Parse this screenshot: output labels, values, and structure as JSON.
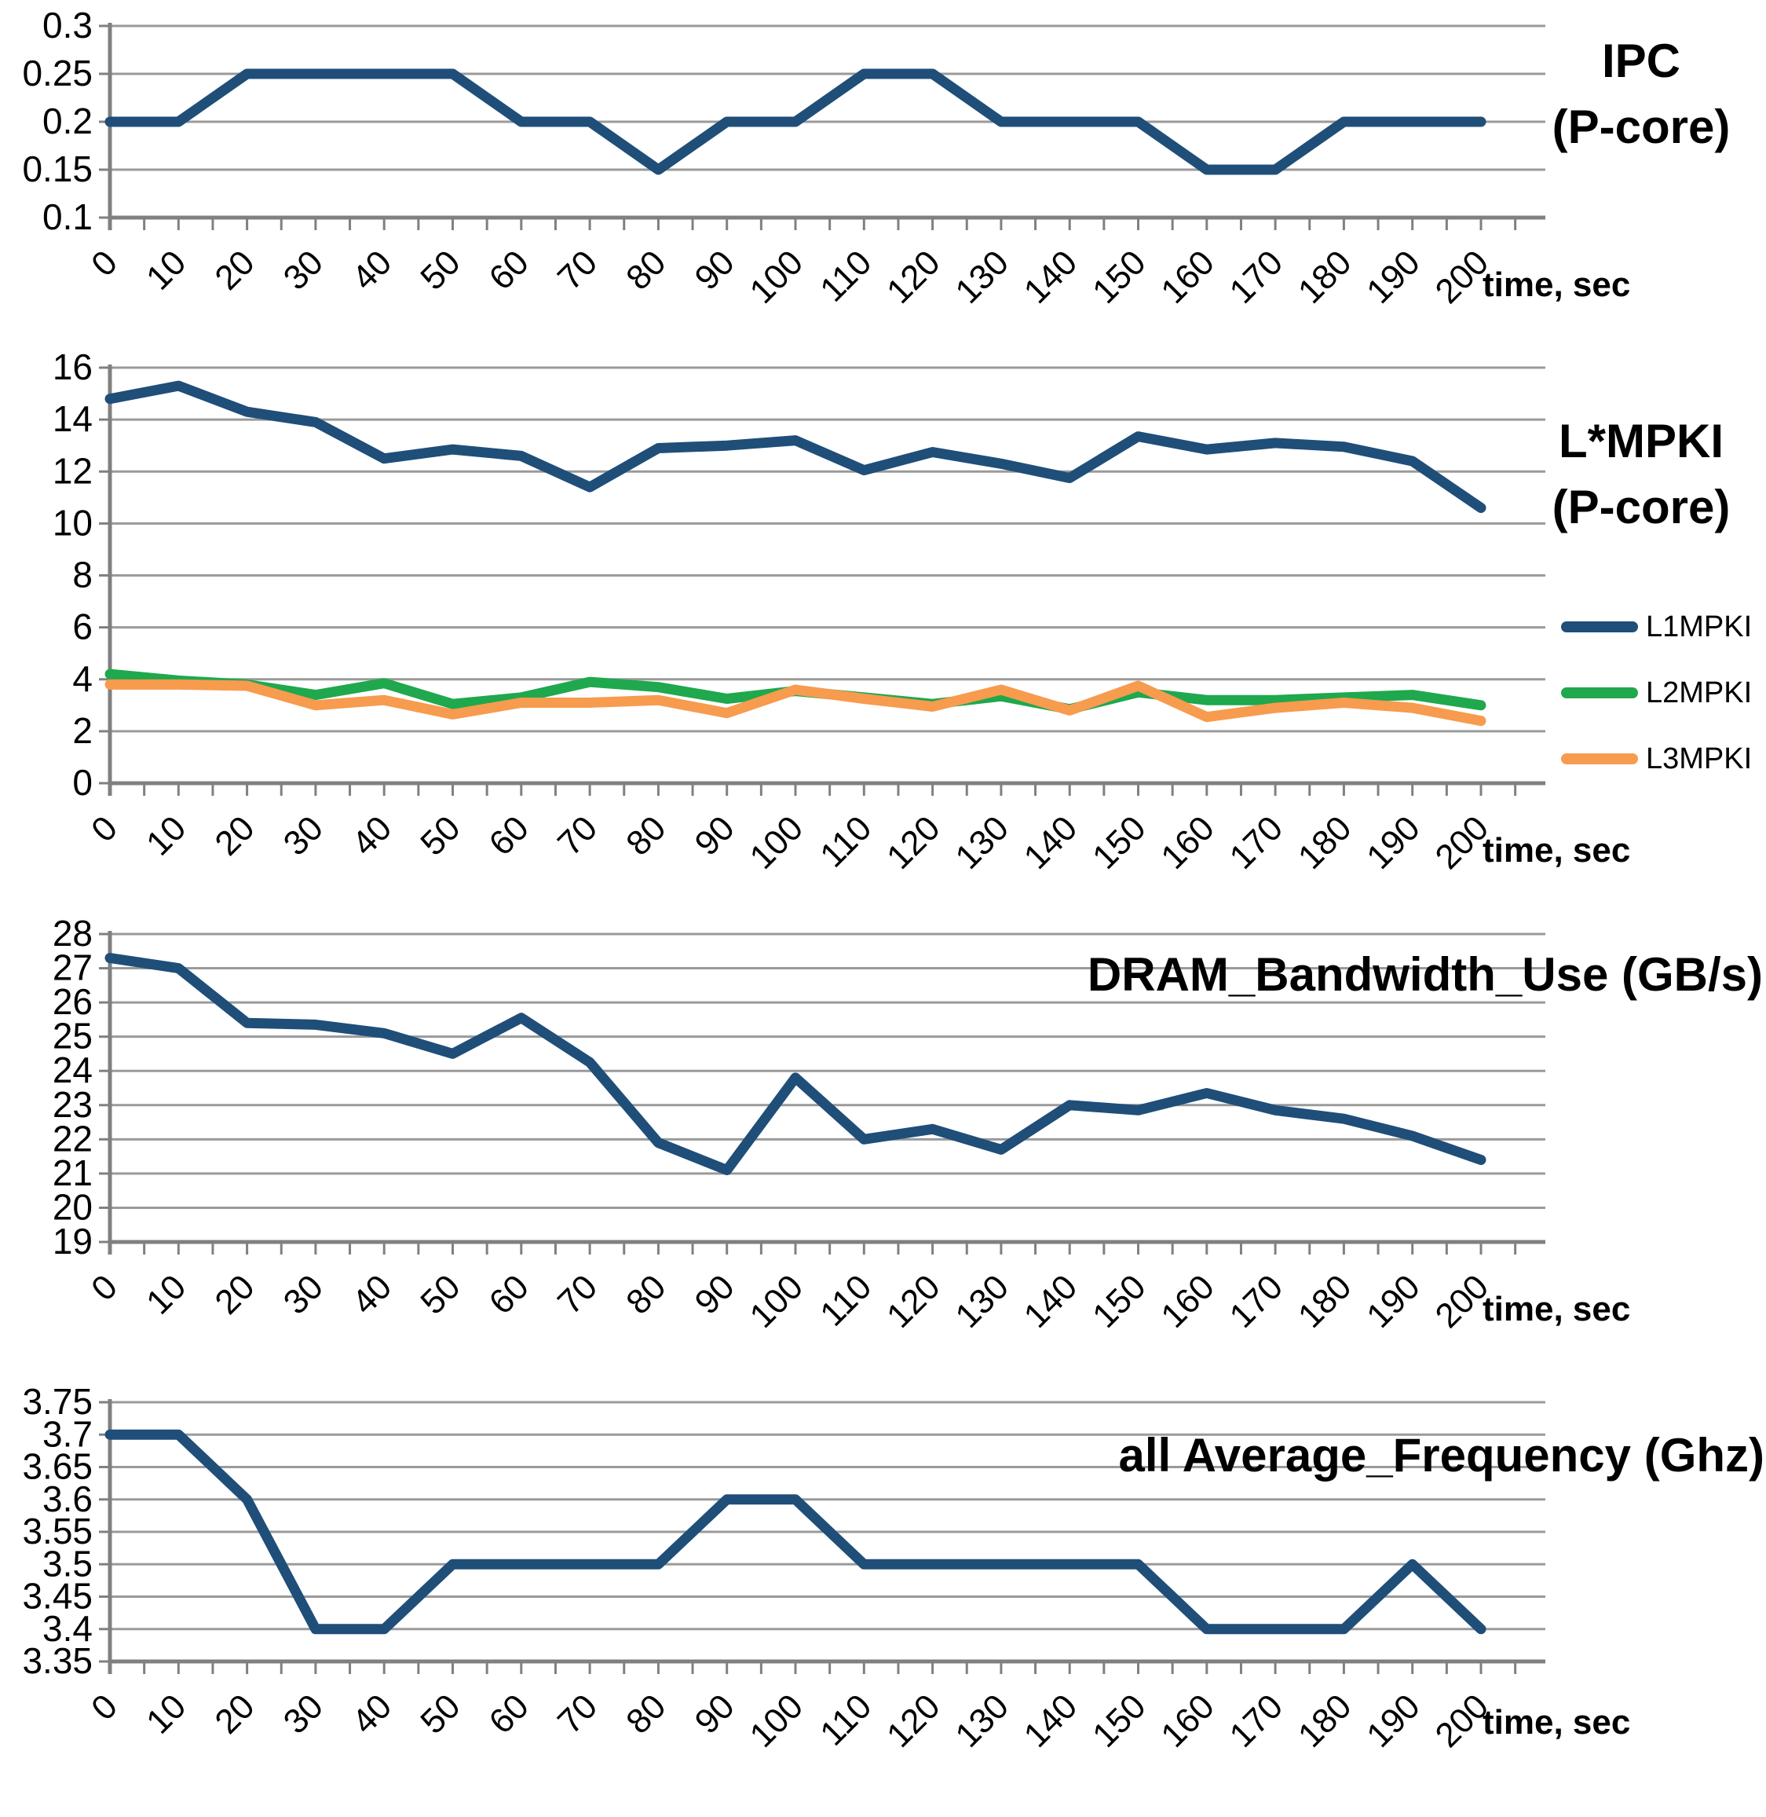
{
  "colors": {
    "series_navy": "#1F4E79",
    "series_green": "#1FA84D",
    "series_orange": "#F79B4E",
    "gridline": "#9A9A9A",
    "axis": "#808080",
    "text": "#000000",
    "background": "#FFFFFF"
  },
  "chart_data": [
    {
      "id": "ipc",
      "type": "line",
      "title_lines": [
        "IPC",
        "(P-core)"
      ],
      "x_label": "time, sec",
      "x": [
        0,
        10,
        20,
        30,
        40,
        50,
        60,
        70,
        80,
        90,
        100,
        110,
        120,
        130,
        140,
        150,
        160,
        170,
        180,
        190,
        200
      ],
      "x_tick_labels": [
        "0",
        "10",
        "20",
        "30",
        "40",
        "50",
        "60",
        "70",
        "80",
        "90",
        "100",
        "110",
        "120",
        "130",
        "140",
        "150",
        "160",
        "170",
        "180",
        "190",
        "200"
      ],
      "y_tick_labels": [
        "0.3",
        "0.25",
        "0.2",
        "0.15",
        "0.1"
      ],
      "ylim": [
        0.1,
        0.3
      ],
      "grid": true,
      "legend_position": "none",
      "series": [
        {
          "name": "IPC",
          "color": "#1F4E79",
          "values": [
            0.2,
            0.2,
            0.25,
            0.25,
            0.25,
            0.25,
            0.2,
            0.2,
            0.15,
            0.2,
            0.2,
            0.25,
            0.25,
            0.2,
            0.2,
            0.2,
            0.15,
            0.15,
            0.2,
            0.2,
            0.2
          ]
        }
      ]
    },
    {
      "id": "mpki",
      "type": "line",
      "title_lines": [
        "L*MPKI",
        "(P-core)"
      ],
      "x_label": "time, sec",
      "x": [
        0,
        10,
        20,
        30,
        40,
        50,
        60,
        70,
        80,
        90,
        100,
        110,
        120,
        130,
        140,
        150,
        160,
        170,
        180,
        190,
        200
      ],
      "x_tick_labels": [
        "0",
        "10",
        "20",
        "30",
        "40",
        "50",
        "60",
        "70",
        "80",
        "90",
        "100",
        "110",
        "120",
        "130",
        "140",
        "150",
        "160",
        "170",
        "180",
        "190",
        "200"
      ],
      "y_tick_labels": [
        "16",
        "14",
        "12",
        "10",
        "8",
        "6",
        "4",
        "2",
        "0"
      ],
      "ylim": [
        0,
        16
      ],
      "grid": true,
      "legend_position": "right",
      "series": [
        {
          "name": "L1MPKI",
          "color": "#1F4E79",
          "values": [
            14.8,
            15.3,
            14.3,
            13.9,
            12.5,
            12.85,
            12.6,
            11.4,
            12.9,
            13.0,
            13.2,
            12.05,
            12.75,
            12.3,
            11.75,
            13.35,
            12.85,
            13.1,
            12.95,
            12.4,
            10.6
          ]
        },
        {
          "name": "L2MPKI",
          "color": "#1FA84D",
          "values": [
            4.2,
            3.95,
            3.8,
            3.4,
            3.85,
            3.05,
            3.3,
            3.9,
            3.7,
            3.25,
            3.55,
            3.3,
            3.05,
            3.35,
            2.85,
            3.5,
            3.2,
            3.2,
            3.3,
            3.4,
            3.0
          ]
        },
        {
          "name": "L3MPKI",
          "color": "#F79B4E",
          "values": [
            3.8,
            3.8,
            3.75,
            3.0,
            3.2,
            2.65,
            3.1,
            3.1,
            3.2,
            2.7,
            3.6,
            3.25,
            2.95,
            3.6,
            2.8,
            3.75,
            2.55,
            2.9,
            3.1,
            2.9,
            2.4
          ]
        }
      ]
    },
    {
      "id": "dram_bandwidth",
      "type": "line",
      "title_lines": [
        "DRAM_Bandwidth_Use (GB/s)"
      ],
      "x_label": "time, sec",
      "x": [
        0,
        10,
        20,
        30,
        40,
        50,
        60,
        70,
        80,
        90,
        100,
        110,
        120,
        130,
        140,
        150,
        160,
        170,
        180,
        190,
        200
      ],
      "x_tick_labels": [
        "0",
        "10",
        "20",
        "30",
        "40",
        "50",
        "60",
        "70",
        "80",
        "90",
        "100",
        "110",
        "120",
        "130",
        "140",
        "150",
        "160",
        "170",
        "180",
        "190",
        "200"
      ],
      "y_tick_labels": [
        "28",
        "27",
        "26",
        "25",
        "24",
        "23",
        "22",
        "21",
        "20",
        "19"
      ],
      "ylim": [
        19,
        28
      ],
      "grid": true,
      "legend_position": "none",
      "series": [
        {
          "name": "DRAM_Bandwidth_Use",
          "color": "#1F4E79",
          "values": [
            27.3,
            27.0,
            25.4,
            25.35,
            25.1,
            24.5,
            25.55,
            24.25,
            21.9,
            21.1,
            23.8,
            22.0,
            22.3,
            21.7,
            23.0,
            22.85,
            23.35,
            22.85,
            22.6,
            22.1,
            21.4
          ]
        }
      ]
    },
    {
      "id": "avg_frequency",
      "type": "line",
      "title_lines": [
        "all Average_Frequency (Ghz)"
      ],
      "x_label": "time, sec",
      "x": [
        0,
        10,
        20,
        30,
        40,
        50,
        60,
        70,
        80,
        90,
        100,
        110,
        120,
        130,
        140,
        150,
        160,
        170,
        180,
        190,
        200
      ],
      "x_tick_labels": [
        "0",
        "10",
        "20",
        "30",
        "40",
        "50",
        "60",
        "70",
        "80",
        "90",
        "100",
        "110",
        "120",
        "130",
        "140",
        "150",
        "160",
        "170",
        "180",
        "190",
        "200"
      ],
      "y_tick_labels": [
        "3.75",
        "3.7",
        "3.65",
        "3.6",
        "3.55",
        "3.5",
        "3.45",
        "3.4",
        "3.35"
      ],
      "ylim": [
        3.35,
        3.75
      ],
      "grid": true,
      "legend_position": "none",
      "series": [
        {
          "name": "Average_Frequency",
          "color": "#1F4E79",
          "values": [
            3.7,
            3.7,
            3.6,
            3.4,
            3.4,
            3.5,
            3.5,
            3.5,
            3.5,
            3.6,
            3.6,
            3.5,
            3.5,
            3.5,
            3.5,
            3.5,
            3.4,
            3.4,
            3.4,
            3.5,
            3.4
          ]
        }
      ]
    }
  ]
}
